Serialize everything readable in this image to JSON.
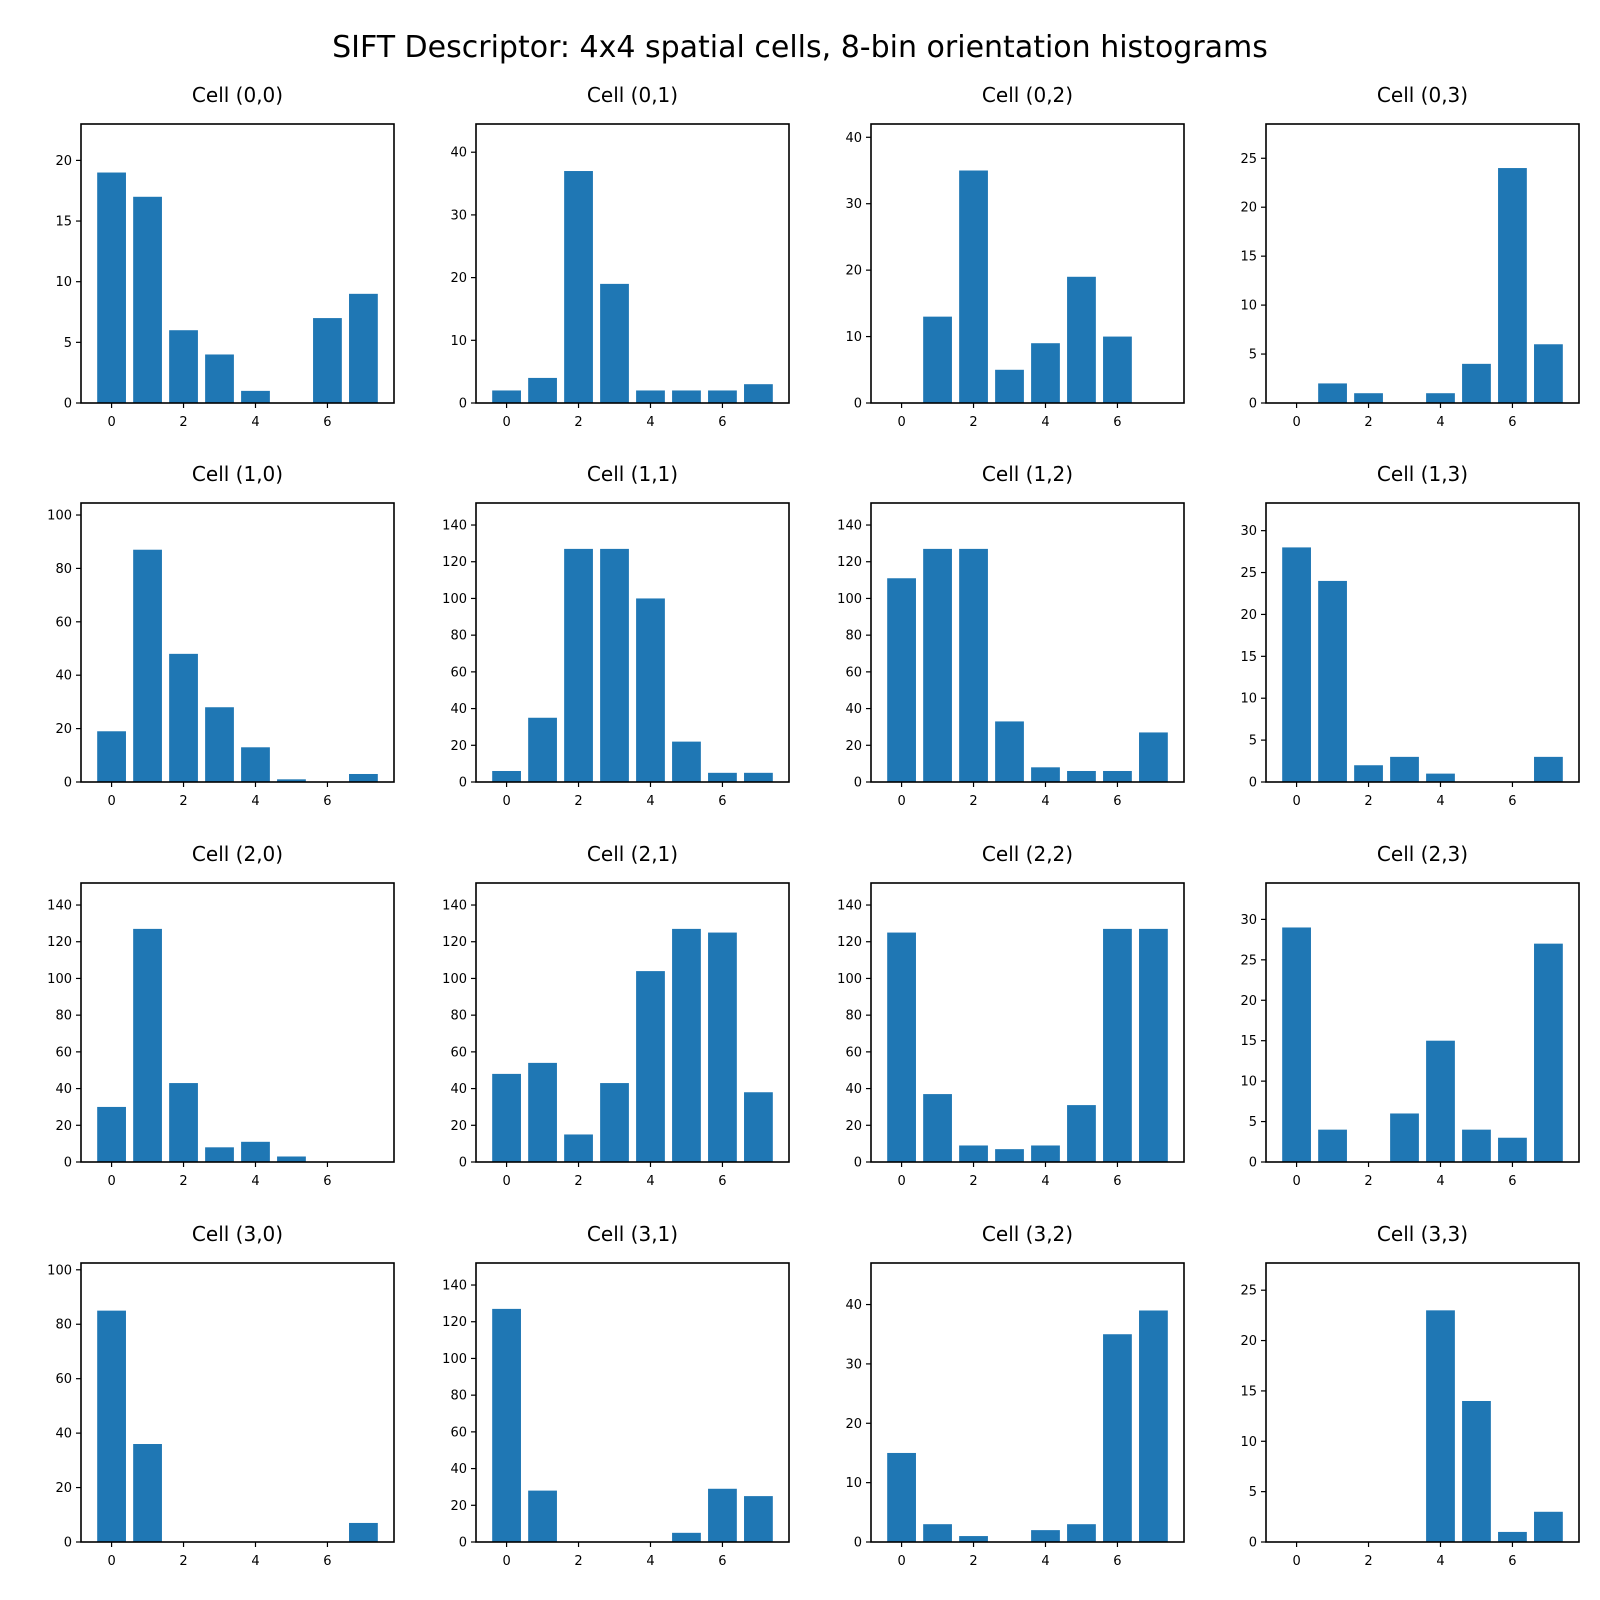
{
  "figure_title": "SIFT Descriptor: 4x4 spatial cells, 8-bin orientation histograms",
  "colors": {
    "bar": "#1f77b4",
    "axes": "#000000",
    "background": "#ffffff"
  },
  "chart_data": [
    {
      "type": "bar",
      "title": "Cell (0,0)",
      "x": [
        0,
        1,
        2,
        3,
        4,
        5,
        6,
        7
      ],
      "values": [
        19,
        17,
        6,
        4,
        1,
        0,
        7,
        9
      ],
      "xticks": [
        0,
        2,
        4,
        6
      ],
      "yticks": [
        0,
        5,
        10,
        15,
        20
      ],
      "ylim": [
        0,
        23
      ],
      "xlim": [
        -0.85,
        7.85
      ]
    },
    {
      "type": "bar",
      "title": "Cell (0,1)",
      "x": [
        0,
        1,
        2,
        3,
        4,
        5,
        6,
        7
      ],
      "values": [
        2,
        4,
        37,
        19,
        2,
        2,
        2,
        3
      ],
      "xticks": [
        0,
        2,
        4,
        6
      ],
      "yticks": [
        0,
        10,
        20,
        30,
        40
      ],
      "ylim": [
        0,
        44.5
      ],
      "xlim": [
        -0.85,
        7.85
      ]
    },
    {
      "type": "bar",
      "title": "Cell (0,2)",
      "x": [
        0,
        1,
        2,
        3,
        4,
        5,
        6,
        7
      ],
      "values": [
        0,
        13,
        35,
        5,
        9,
        19,
        10,
        0
      ],
      "xticks": [
        0,
        2,
        4,
        6
      ],
      "yticks": [
        0,
        10,
        20,
        30,
        40
      ],
      "ylim": [
        0,
        42
      ],
      "xlim": [
        -0.85,
        7.85
      ]
    },
    {
      "type": "bar",
      "title": "Cell (0,3)",
      "x": [
        0,
        1,
        2,
        3,
        4,
        5,
        6,
        7
      ],
      "values": [
        0,
        2,
        1,
        0,
        1,
        4,
        24,
        6
      ],
      "xticks": [
        0,
        2,
        4,
        6
      ],
      "yticks": [
        0,
        5,
        10,
        15,
        20,
        25
      ],
      "ylim": [
        0,
        28.5
      ],
      "xlim": [
        -0.85,
        7.85
      ]
    },
    {
      "type": "bar",
      "title": "Cell (1,0)",
      "x": [
        0,
        1,
        2,
        3,
        4,
        5,
        6,
        7
      ],
      "values": [
        19,
        87,
        48,
        28,
        13,
        1,
        0,
        3
      ],
      "xticks": [
        0,
        2,
        4,
        6
      ],
      "yticks": [
        0,
        20,
        40,
        60,
        80,
        100
      ],
      "ylim": [
        0,
        104.5
      ],
      "xlim": [
        -0.85,
        7.85
      ]
    },
    {
      "type": "bar",
      "title": "Cell (1,1)",
      "x": [
        0,
        1,
        2,
        3,
        4,
        5,
        6,
        7
      ],
      "values": [
        6,
        35,
        127,
        127,
        100,
        22,
        5,
        5
      ],
      "xticks": [
        0,
        2,
        4,
        6
      ],
      "yticks": [
        0,
        20,
        40,
        60,
        80,
        100,
        120,
        140
      ],
      "ylim": [
        0,
        152
      ],
      "xlim": [
        -0.85,
        7.85
      ]
    },
    {
      "type": "bar",
      "title": "Cell (1,2)",
      "x": [
        0,
        1,
        2,
        3,
        4,
        5,
        6,
        7
      ],
      "values": [
        111,
        127,
        127,
        33,
        8,
        6,
        6,
        27
      ],
      "xticks": [
        0,
        2,
        4,
        6
      ],
      "yticks": [
        0,
        20,
        40,
        60,
        80,
        100,
        120,
        140
      ],
      "ylim": [
        0,
        152
      ],
      "xlim": [
        -0.85,
        7.85
      ]
    },
    {
      "type": "bar",
      "title": "Cell (1,3)",
      "x": [
        0,
        1,
        2,
        3,
        4,
        5,
        6,
        7
      ],
      "values": [
        28,
        24,
        2,
        3,
        1,
        0,
        0,
        3
      ],
      "xticks": [
        0,
        2,
        4,
        6
      ],
      "yticks": [
        0,
        5,
        10,
        15,
        20,
        25,
        30
      ],
      "ylim": [
        0,
        33.3
      ],
      "xlim": [
        -0.85,
        7.85
      ]
    },
    {
      "type": "bar",
      "title": "Cell (2,0)",
      "x": [
        0,
        1,
        2,
        3,
        4,
        5,
        6,
        7
      ],
      "values": [
        30,
        127,
        43,
        8,
        11,
        3,
        0,
        0
      ],
      "xticks": [
        0,
        2,
        4,
        6
      ],
      "yticks": [
        0,
        20,
        40,
        60,
        80,
        100,
        120,
        140
      ],
      "ylim": [
        0,
        152
      ],
      "xlim": [
        -0.85,
        7.85
      ]
    },
    {
      "type": "bar",
      "title": "Cell (2,1)",
      "x": [
        0,
        1,
        2,
        3,
        4,
        5,
        6,
        7
      ],
      "values": [
        48,
        54,
        15,
        43,
        104,
        127,
        125,
        38
      ],
      "xticks": [
        0,
        2,
        4,
        6
      ],
      "yticks": [
        0,
        20,
        40,
        60,
        80,
        100,
        120,
        140
      ],
      "ylim": [
        0,
        152
      ],
      "xlim": [
        -0.85,
        7.85
      ]
    },
    {
      "type": "bar",
      "title": "Cell (2,2)",
      "x": [
        0,
        1,
        2,
        3,
        4,
        5,
        6,
        7
      ],
      "values": [
        125,
        37,
        9,
        7,
        9,
        31,
        127,
        127
      ],
      "xticks": [
        0,
        2,
        4,
        6
      ],
      "yticks": [
        0,
        20,
        40,
        60,
        80,
        100,
        120,
        140
      ],
      "ylim": [
        0,
        152
      ],
      "xlim": [
        -0.85,
        7.85
      ]
    },
    {
      "type": "bar",
      "title": "Cell (2,3)",
      "x": [
        0,
        1,
        2,
        3,
        4,
        5,
        6,
        7
      ],
      "values": [
        29,
        4,
        0,
        6,
        15,
        4,
        3,
        27
      ],
      "xticks": [
        0,
        2,
        4,
        6
      ],
      "yticks": [
        0,
        5,
        10,
        15,
        20,
        25,
        30
      ],
      "ylim": [
        0,
        34.5
      ],
      "xlim": [
        -0.85,
        7.85
      ]
    },
    {
      "type": "bar",
      "title": "Cell (3,0)",
      "x": [
        0,
        1,
        2,
        3,
        4,
        5,
        6,
        7
      ],
      "values": [
        85,
        36,
        0,
        0,
        0,
        0,
        0,
        7
      ],
      "xticks": [
        0,
        2,
        4,
        6
      ],
      "yticks": [
        0,
        20,
        40,
        60,
        80,
        100
      ],
      "ylim": [
        0,
        102.5
      ],
      "xlim": [
        -0.85,
        7.85
      ]
    },
    {
      "type": "bar",
      "title": "Cell (3,1)",
      "x": [
        0,
        1,
        2,
        3,
        4,
        5,
        6,
        7
      ],
      "values": [
        127,
        28,
        0,
        0,
        0,
        5,
        29,
        25
      ],
      "xticks": [
        0,
        2,
        4,
        6
      ],
      "yticks": [
        0,
        20,
        40,
        60,
        80,
        100,
        120,
        140
      ],
      "ylim": [
        0,
        152
      ],
      "xlim": [
        -0.85,
        7.85
      ]
    },
    {
      "type": "bar",
      "title": "Cell (3,2)",
      "x": [
        0,
        1,
        2,
        3,
        4,
        5,
        6,
        7
      ],
      "values": [
        15,
        3,
        1,
        0,
        2,
        3,
        35,
        39
      ],
      "xticks": [
        0,
        2,
        4,
        6
      ],
      "yticks": [
        0,
        10,
        20,
        30,
        40
      ],
      "ylim": [
        0,
        47
      ],
      "xlim": [
        -0.85,
        7.85
      ]
    },
    {
      "type": "bar",
      "title": "Cell (3,3)",
      "x": [
        0,
        1,
        2,
        3,
        4,
        5,
        6,
        7
      ],
      "values": [
        0,
        0,
        0,
        0,
        23,
        14,
        1,
        3
      ],
      "xticks": [
        0,
        2,
        4,
        6
      ],
      "yticks": [
        0,
        5,
        10,
        15,
        20,
        25
      ],
      "ylim": [
        0,
        27.7
      ],
      "xlim": [
        -0.85,
        7.85
      ]
    }
  ]
}
